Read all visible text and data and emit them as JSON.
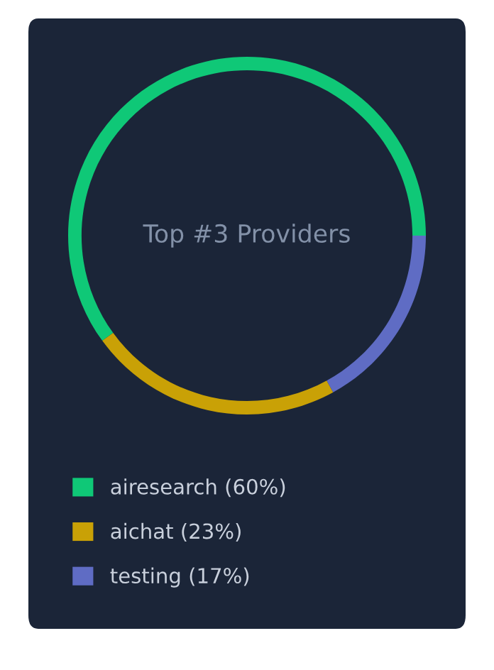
{
  "chart_data": {
    "type": "donut",
    "title": "Top #3 Providers",
    "categories": [
      "airesearch (60%)",
      "aichat (23%)",
      "testing (17%)"
    ],
    "values": [
      60,
      23,
      17
    ],
    "colors": [
      "#0fc877",
      "#c9a106",
      "#5f6cc4"
    ],
    "legend": "bottom"
  }
}
